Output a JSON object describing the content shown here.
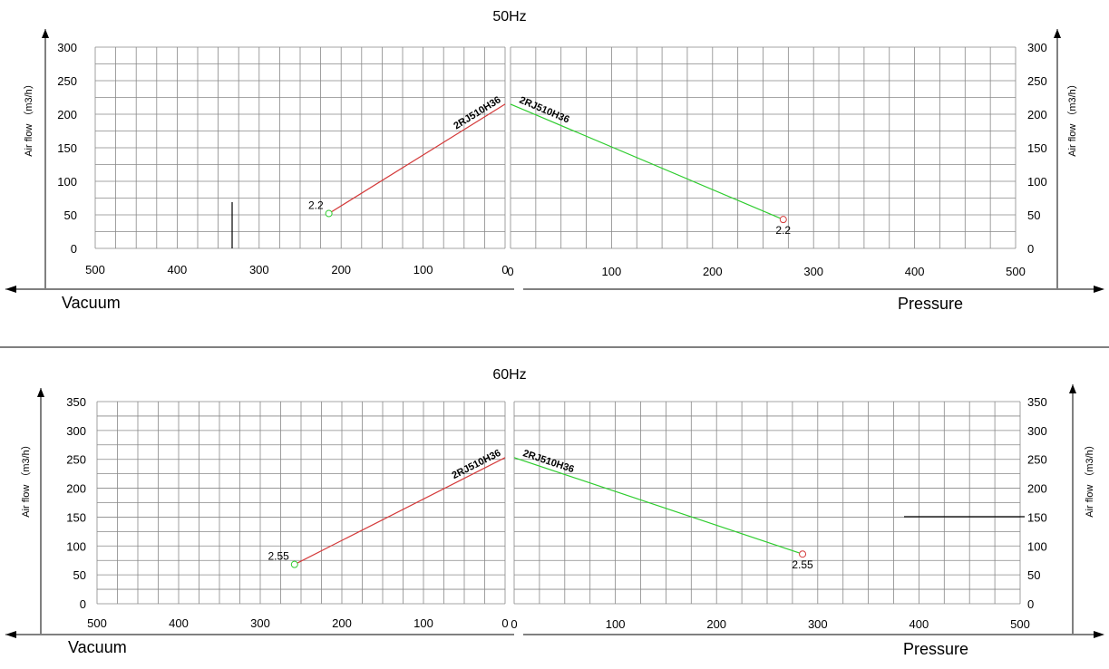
{
  "colors": {
    "vacuum_line": "#d43a3a",
    "pressure_line": "#2ecc2e",
    "grid": "#888888",
    "axis": "#000000"
  },
  "chart_data": [
    {
      "type": "line",
      "title": "50Hz",
      "ylabel": "Air flow （m3/h）",
      "grid": true,
      "ylim": [
        0,
        300
      ],
      "yticks": [
        "0",
        "50",
        "100",
        "150",
        "200",
        "250",
        "300"
      ],
      "left": {
        "side_label": "Vacuum",
        "xlim": [
          500,
          0
        ],
        "xticks": [
          "500",
          "400",
          "300",
          "200",
          "100",
          "0"
        ],
        "series": [
          {
            "name": "2RJ510H36",
            "x": [
              0,
              215
            ],
            "y": [
              215,
              52
            ],
            "end_label": "2.2"
          }
        ]
      },
      "right": {
        "side_label": "Pressure",
        "xlim": [
          0,
          500
        ],
        "xticks": [
          "0",
          "100",
          "200",
          "300",
          "400",
          "500"
        ],
        "series": [
          {
            "name": "2RJ510H36",
            "x": [
              0,
              270
            ],
            "y": [
              215,
              43
            ],
            "end_label": "2.2"
          }
        ]
      }
    },
    {
      "type": "line",
      "title": "60Hz",
      "ylabel": "Air flow （m3/h）",
      "grid": true,
      "ylim": [
        0,
        350
      ],
      "yticks": [
        "0",
        "50",
        "100",
        "150",
        "200",
        "250",
        "300",
        "350"
      ],
      "left": {
        "side_label": "Vacuum",
        "xlim": [
          500,
          0
        ],
        "xticks": [
          "500",
          "400",
          "300",
          "200",
          "100",
          "0"
        ],
        "series": [
          {
            "name": "2RJ510H36",
            "x": [
              0,
              258
            ],
            "y": [
              253,
              68
            ],
            "end_label": "2.55"
          }
        ]
      },
      "right": {
        "side_label": "Pressure",
        "xlim": [
          0,
          500
        ],
        "xticks": [
          "0",
          "100",
          "200",
          "300",
          "400",
          "500"
        ],
        "series": [
          {
            "name": "2RJ510H36",
            "x": [
              0,
              285
            ],
            "y": [
              253,
              86
            ],
            "end_label": "2.55"
          }
        ]
      }
    }
  ]
}
